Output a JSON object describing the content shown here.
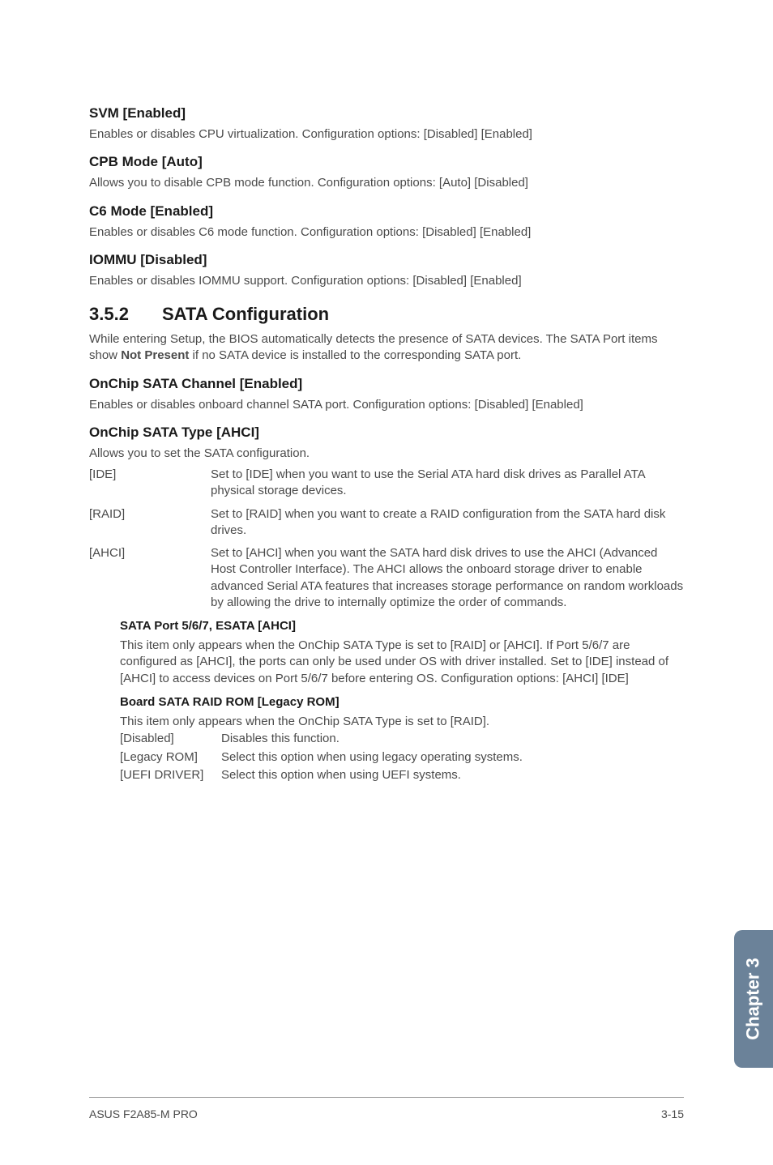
{
  "sections": {
    "svm": {
      "title": "SVM [Enabled]",
      "body": "Enables or disables CPU virtualization. Configuration options: [Disabled] [Enabled]"
    },
    "cpb": {
      "title": "CPB Mode [Auto]",
      "body": "Allows you to disable CPB mode function. Configuration options: [Auto] [Disabled]"
    },
    "c6": {
      "title": "C6 Mode [Enabled]",
      "body": "Enables or disables C6 mode function. Configuration options: [Disabled] [Enabled]"
    },
    "iommu": {
      "title": "IOMMU [Disabled]",
      "body": "Enables or disables IOMMU support. Configuration options: [Disabled] [Enabled]"
    },
    "sata": {
      "num": "3.5.2",
      "title": "SATA Configuration",
      "intro_a": "While entering Setup, the BIOS automatically detects the presence of SATA devices. The SATA Port items show ",
      "intro_bold": "Not Present",
      "intro_b": " if no SATA device is installed to the corresponding SATA port."
    },
    "onchip_channel": {
      "title": "OnChip SATA Channel [Enabled]",
      "body": "Enables or disables onboard channel SATA port. Configuration options: [Disabled] [Enabled]"
    },
    "onchip_type": {
      "title": "OnChip SATA Type [AHCI]",
      "intro": "Allows you to set the SATA configuration.",
      "options": [
        {
          "term": "[IDE]",
          "desc": "Set to [IDE] when you want to use the Serial ATA hard disk drives as Parallel ATA physical storage devices."
        },
        {
          "term": "[RAID]",
          "desc": "Set to [RAID] when you want to create a RAID configuration from the SATA hard disk drives."
        },
        {
          "term": "[AHCI]",
          "desc": "Set to [AHCI] when you want the SATA hard disk drives to use the AHCI (Advanced Host Controller Interface). The AHCI allows the onboard storage driver to enable advanced Serial ATA features that increases storage performance on random workloads by allowing the drive to internally optimize the order of commands."
        }
      ]
    },
    "sata_port": {
      "title": "SATA Port 5/6/7, ESATA [AHCI]",
      "body": "This item only appears when the OnChip SATA Type is set to [RAID] or [AHCI]. If Port 5/6/7 are configured as [AHCI], the ports can only be used under OS with driver installed. Set to [IDE] instead of [AHCI] to access devices on Port 5/6/7 before entering OS. Configuration options: [AHCI] [IDE]"
    },
    "board_raid": {
      "title": "Board SATA RAID ROM [Legacy ROM]",
      "intro": "This item only appears when the OnChip SATA Type is set to [RAID].",
      "options": [
        {
          "term": "[Disabled]",
          "desc": "Disables this function."
        },
        {
          "term": "[Legacy ROM]",
          "desc": "Select this option when using legacy operating systems."
        },
        {
          "term": "[UEFI DRIVER]",
          "desc": "Select this option when using UEFI systems."
        }
      ]
    }
  },
  "sidetab": "Chapter 3",
  "footer": {
    "left": "ASUS F2A85-M PRO",
    "right": "3-15"
  }
}
